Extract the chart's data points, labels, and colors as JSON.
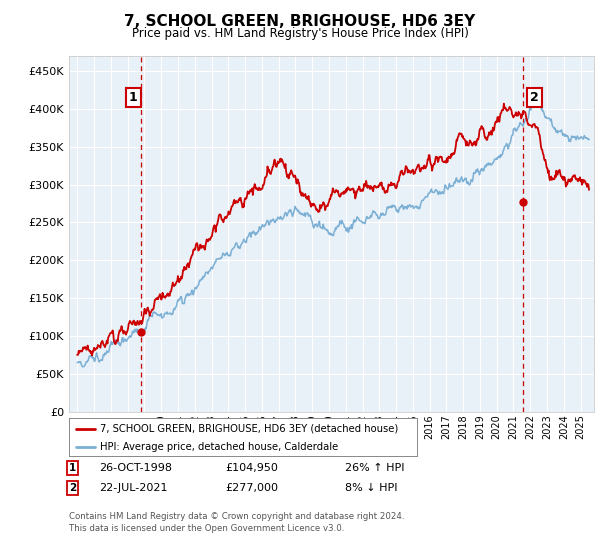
{
  "title": "7, SCHOOL GREEN, BRIGHOUSE, HD6 3EY",
  "subtitle": "Price paid vs. HM Land Registry's House Price Index (HPI)",
  "legend_line1": "7, SCHOOL GREEN, BRIGHOUSE, HD6 3EY (detached house)",
  "legend_line2": "HPI: Average price, detached house, Calderdale",
  "footnote": "Contains HM Land Registry data © Crown copyright and database right 2024.\nThis data is licensed under the Open Government Licence v3.0.",
  "annotation1": {
    "label": "1",
    "date": "26-OCT-1998",
    "price": "£104,950",
    "change": "26% ↑ HPI"
  },
  "annotation2": {
    "label": "2",
    "date": "22-JUL-2021",
    "price": "£277,000",
    "change": "8% ↓ HPI"
  },
  "red_color": "#cc0000",
  "blue_color": "#7bafd4",
  "background_color": "#e8f0f8",
  "grid_color": "#ffffff",
  "ylim": [
    0,
    470000
  ],
  "yticks": [
    0,
    50000,
    100000,
    150000,
    200000,
    250000,
    300000,
    350000,
    400000,
    450000
  ],
  "ytick_labels": [
    "£0",
    "£50K",
    "£100K",
    "£150K",
    "£200K",
    "£250K",
    "£300K",
    "£350K",
    "£400K",
    "£450K"
  ],
  "sale1_x": 1998.82,
  "sale1_y": 104950,
  "sale2_x": 2021.55,
  "sale2_y": 277000,
  "vline1_x": 1998.82,
  "vline2_x": 2021.55,
  "xlim_left": 1994.5,
  "xlim_right": 2025.8
}
